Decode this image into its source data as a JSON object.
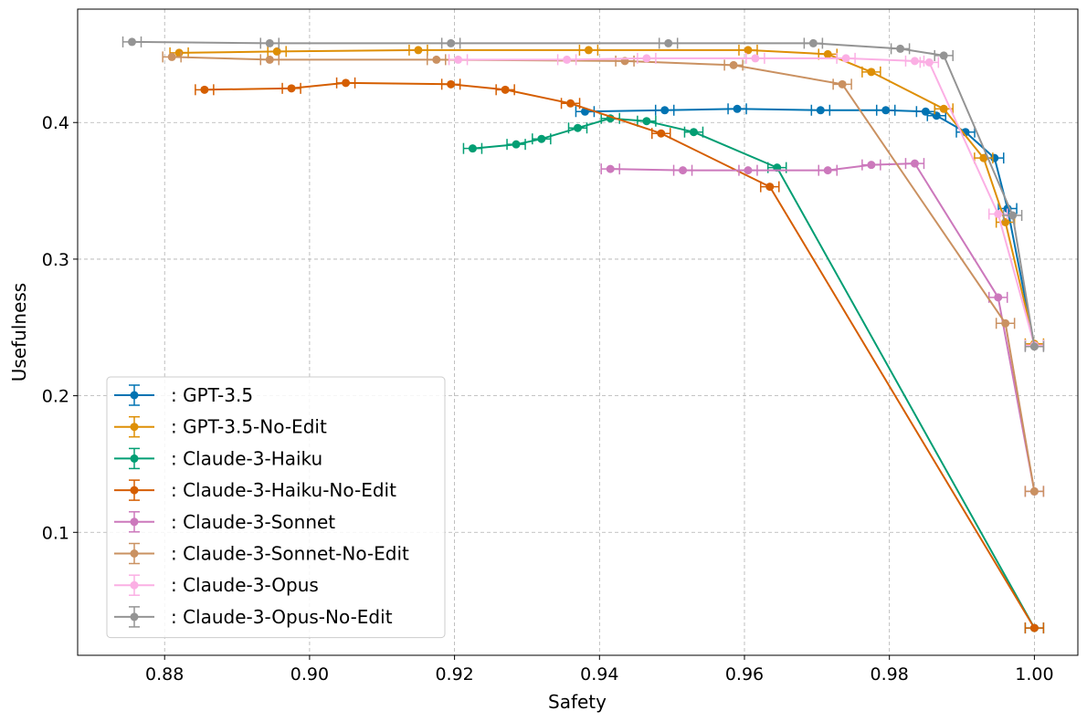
{
  "chart_data": {
    "type": "line",
    "title": "",
    "xlabel": "Safety",
    "ylabel": "Usefulness",
    "xlim": [
      0.868,
      1.006
    ],
    "ylim": [
      0.01,
      0.483
    ],
    "xticks": [
      0.88,
      0.9,
      0.92,
      0.94,
      0.96,
      0.98,
      1.0
    ],
    "xtick_labels": [
      "0.88",
      "0.90",
      "0.92",
      "0.94",
      "0.96",
      "0.98",
      "1.00"
    ],
    "yticks": [
      0.1,
      0.2,
      0.3,
      0.4
    ],
    "ytick_labels": [
      "0.1",
      "0.2",
      "0.3",
      "0.4"
    ],
    "grid": true,
    "legend_position": "lower-left",
    "error_bars": true,
    "series": [
      {
        "name": ": GPT-3.5",
        "color": "#0173b2",
        "points": [
          [
            0.938,
            0.408
          ],
          [
            0.949,
            0.409
          ],
          [
            0.959,
            0.41
          ],
          [
            0.9705,
            0.409
          ],
          [
            0.9795,
            0.409
          ],
          [
            0.985,
            0.408
          ],
          [
            0.9865,
            0.405
          ],
          [
            0.9905,
            0.393
          ],
          [
            0.9945,
            0.374
          ],
          [
            0.9963,
            0.337
          ],
          [
            1.0,
            0.237
          ]
        ]
      },
      {
        "name": ": GPT-3.5-No-Edit",
        "color": "#de8f05",
        "points": [
          [
            0.882,
            0.451
          ],
          [
            0.8955,
            0.452
          ],
          [
            0.915,
            0.453
          ],
          [
            0.9385,
            0.453
          ],
          [
            0.9605,
            0.453
          ],
          [
            0.9715,
            0.45
          ],
          [
            0.9775,
            0.437
          ],
          [
            0.9875,
            0.41
          ],
          [
            0.993,
            0.374
          ],
          [
            0.996,
            0.327
          ],
          [
            1.0,
            0.238
          ]
        ]
      },
      {
        "name": ": Claude-3-Haiku",
        "color": "#029e73",
        "points": [
          [
            0.9225,
            0.381
          ],
          [
            0.9285,
            0.384
          ],
          [
            0.932,
            0.388
          ],
          [
            0.937,
            0.396
          ],
          [
            0.9415,
            0.403
          ],
          [
            0.9465,
            0.401
          ],
          [
            0.953,
            0.393
          ],
          [
            0.9645,
            0.367
          ],
          [
            1.0,
            0.03
          ]
        ]
      },
      {
        "name": ": Claude-3-Haiku-No-Edit",
        "color": "#d55e00",
        "points": [
          [
            0.8855,
            0.424
          ],
          [
            0.8975,
            0.425
          ],
          [
            0.905,
            0.429
          ],
          [
            0.9195,
            0.428
          ],
          [
            0.927,
            0.424
          ],
          [
            0.936,
            0.414
          ],
          [
            0.9485,
            0.392
          ],
          [
            0.9635,
            0.353
          ],
          [
            1.0,
            0.03
          ]
        ]
      },
      {
        "name": ": Claude-3-Sonnet",
        "color": "#cc78bc",
        "points": [
          [
            0.9415,
            0.366
          ],
          [
            0.9515,
            0.365
          ],
          [
            0.9605,
            0.365
          ],
          [
            0.9715,
            0.365
          ],
          [
            0.9775,
            0.369
          ],
          [
            0.9835,
            0.37
          ],
          [
            0.995,
            0.272
          ],
          [
            1.0,
            0.13
          ]
        ]
      },
      {
        "name": ": Claude-3-Sonnet-No-Edit",
        "color": "#ca9161",
        "points": [
          [
            0.881,
            0.448
          ],
          [
            0.8945,
            0.446
          ],
          [
            0.9175,
            0.446
          ],
          [
            0.9435,
            0.445
          ],
          [
            0.9585,
            0.442
          ],
          [
            0.9735,
            0.428
          ],
          [
            0.996,
            0.253
          ],
          [
            1.0,
            0.13
          ]
        ]
      },
      {
        "name": ": Claude-3-Opus",
        "color": "#fbafe4",
        "points": [
          [
            0.9205,
            0.446
          ],
          [
            0.9355,
            0.446
          ],
          [
            0.9465,
            0.447
          ],
          [
            0.9615,
            0.447
          ],
          [
            0.974,
            0.447
          ],
          [
            0.9835,
            0.445
          ],
          [
            0.9855,
            0.444
          ],
          [
            0.995,
            0.333
          ],
          [
            1.0,
            0.237
          ]
        ]
      },
      {
        "name": ": Claude-3-Opus-No-Edit",
        "color": "#949494",
        "points": [
          [
            0.8755,
            0.459
          ],
          [
            0.8945,
            0.458
          ],
          [
            0.9195,
            0.458
          ],
          [
            0.9495,
            0.458
          ],
          [
            0.9695,
            0.458
          ],
          [
            0.9815,
            0.454
          ],
          [
            0.9875,
            0.449
          ],
          [
            0.997,
            0.332
          ],
          [
            1.0,
            0.236
          ]
        ]
      }
    ]
  }
}
